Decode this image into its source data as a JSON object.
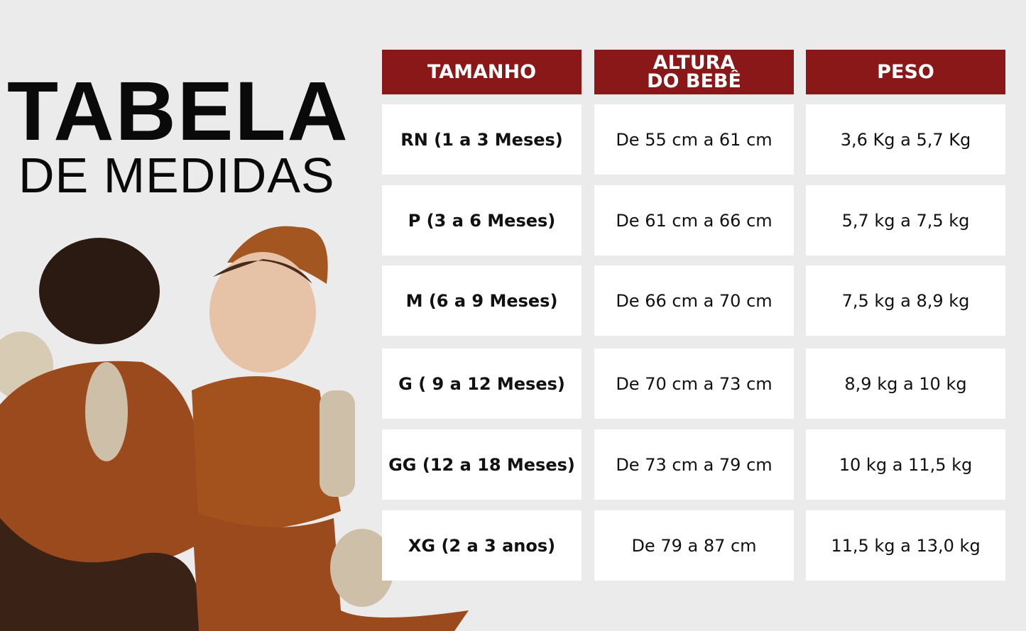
{
  "title": {
    "line1": "TABELA",
    "line2": "DE MEDIDAS"
  },
  "colors": {
    "header": "#8a1818",
    "background": "#ebebeb",
    "cell": "#ffffff"
  },
  "table": {
    "headers": [
      "TAMANHO",
      "ALTURA DO BEBÊ",
      "PESO"
    ],
    "rows": [
      [
        "RN (1 a 3 Meses)",
        "De 55 cm a 61 cm",
        "3,6 Kg a 5,7 Kg"
      ],
      [
        "P (3 a 6 Meses)",
        "De 61 cm a 66 cm",
        "5,7 kg a 7,5 kg"
      ],
      [
        "M (6 a 9 Meses)",
        "De 66 cm a 70 cm",
        "7,5 kg a 8,9 kg"
      ],
      [
        "G ( 9 a 12 Meses)",
        "De 70 cm a 73 cm",
        "8,9 kg a 10 kg"
      ],
      [
        "GG (12 a 18 Meses)",
        "De 73 cm a 79 cm",
        "10 kg a 11,5 kg"
      ],
      [
        "XG (2 a 3 anos)",
        "De 79 a 87 cm",
        "11,5 kg a 13,0 kg"
      ]
    ]
  }
}
